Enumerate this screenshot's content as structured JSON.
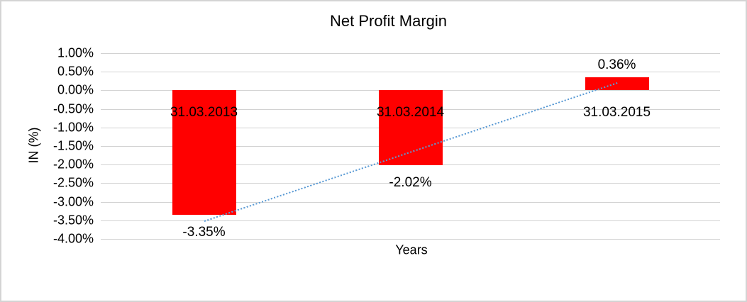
{
  "chart_data": {
    "type": "bar",
    "title": "Net Profit Margin",
    "xlabel": "Years",
    "ylabel": "IN (%)",
    "categories": [
      "31.03.2013",
      "31.03.2014",
      "31.03.2015"
    ],
    "values": [
      -3.35,
      -2.02,
      0.36
    ],
    "data_labels": [
      "-3.35%",
      "-2.02%",
      "0.36%"
    ],
    "ylim": [
      -4.0,
      1.0
    ],
    "ytick_step": 0.5,
    "ytick_labels": [
      "1.00%",
      "0.50%",
      "0.00%",
      "-0.50%",
      "-1.00%",
      "-1.50%",
      "-2.00%",
      "-2.50%",
      "-3.00%",
      "-3.50%",
      "-4.00%"
    ],
    "grid": true,
    "legend_position": "none",
    "bar_color": "#FF0000",
    "trendline": {
      "type": "linear",
      "style": "dotted",
      "color": "#5B9BD5",
      "start_value": -3.53,
      "end_value": 0.19
    }
  }
}
